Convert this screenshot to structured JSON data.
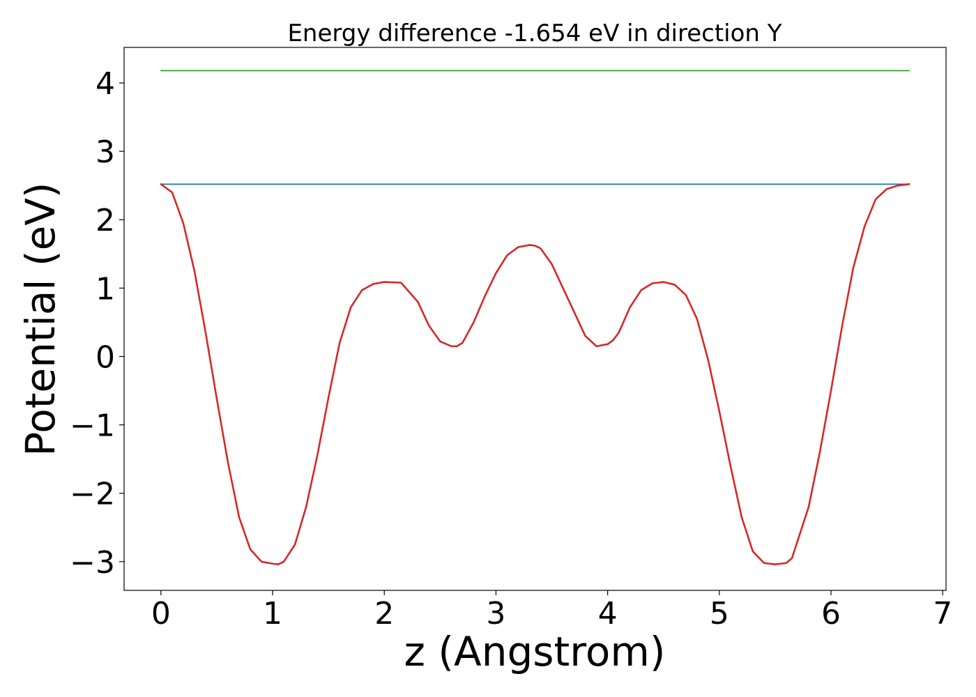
{
  "chart_data": {
    "type": "line",
    "title": "Energy difference -1.654 eV in direction Y",
    "xlabel": "z (Angstrom)",
    "ylabel": "Potential (eV)",
    "xlim": [
      -0.33,
      7.03
    ],
    "ylim": [
      -3.42,
      4.52
    ],
    "xticks": [
      0,
      1,
      2,
      3,
      4,
      5,
      6,
      7
    ],
    "xtick_labels": [
      "0",
      "1",
      "2",
      "3",
      "4",
      "5",
      "6",
      "7"
    ],
    "yticks": [
      -3,
      -2,
      -1,
      0,
      1,
      2,
      3,
      4
    ],
    "ytick_labels": [
      "−3",
      "−2",
      "−1",
      "0",
      "1",
      "2",
      "3",
      "4"
    ],
    "grid": false,
    "series": [
      {
        "color": "#2ca02c",
        "x": [
          0,
          6.7
        ],
        "y": [
          4.18,
          4.18
        ]
      },
      {
        "color": "#1f77b4",
        "x": [
          0,
          6.7
        ],
        "y": [
          2.52,
          2.52
        ]
      },
      {
        "color": "#d62728",
        "x": [
          0,
          0.1,
          0.2,
          0.3,
          0.4,
          0.5,
          0.6,
          0.7,
          0.8,
          0.9,
          1.0,
          1.05,
          1.1,
          1.2,
          1.3,
          1.4,
          1.5,
          1.6,
          1.7,
          1.8,
          1.9,
          2.0,
          2.15,
          2.3,
          2.4,
          2.5,
          2.6,
          2.65,
          2.7,
          2.8,
          2.9,
          3.0,
          3.1,
          3.2,
          3.3,
          3.35,
          3.4,
          3.5,
          3.6,
          3.7,
          3.8,
          3.9,
          4.0,
          4.05,
          4.1,
          4.2,
          4.3,
          4.4,
          4.5,
          4.6,
          4.7,
          4.8,
          4.9,
          5.0,
          5.1,
          5.2,
          5.3,
          5.4,
          5.5,
          5.6,
          5.65,
          5.7,
          5.8,
          5.9,
          6.0,
          6.1,
          6.2,
          6.3,
          6.4,
          6.5,
          6.6,
          6.7
        ],
        "y": [
          2.52,
          2.4,
          1.95,
          1.25,
          0.35,
          -0.62,
          -1.55,
          -2.35,
          -2.82,
          -3.0,
          -3.03,
          -3.04,
          -3.0,
          -2.75,
          -2.2,
          -1.45,
          -0.6,
          0.2,
          0.72,
          0.97,
          1.06,
          1.09,
          1.08,
          0.8,
          0.45,
          0.22,
          0.15,
          0.15,
          0.2,
          0.5,
          0.88,
          1.22,
          1.48,
          1.6,
          1.63,
          1.62,
          1.58,
          1.35,
          1.0,
          0.65,
          0.3,
          0.15,
          0.18,
          0.24,
          0.35,
          0.72,
          0.97,
          1.07,
          1.09,
          1.05,
          0.9,
          0.55,
          -0.05,
          -0.8,
          -1.6,
          -2.35,
          -2.85,
          -3.02,
          -3.04,
          -3.02,
          -2.95,
          -2.7,
          -2.2,
          -1.4,
          -0.5,
          0.45,
          1.3,
          1.9,
          2.3,
          2.45,
          2.5,
          2.52
        ]
      }
    ]
  }
}
